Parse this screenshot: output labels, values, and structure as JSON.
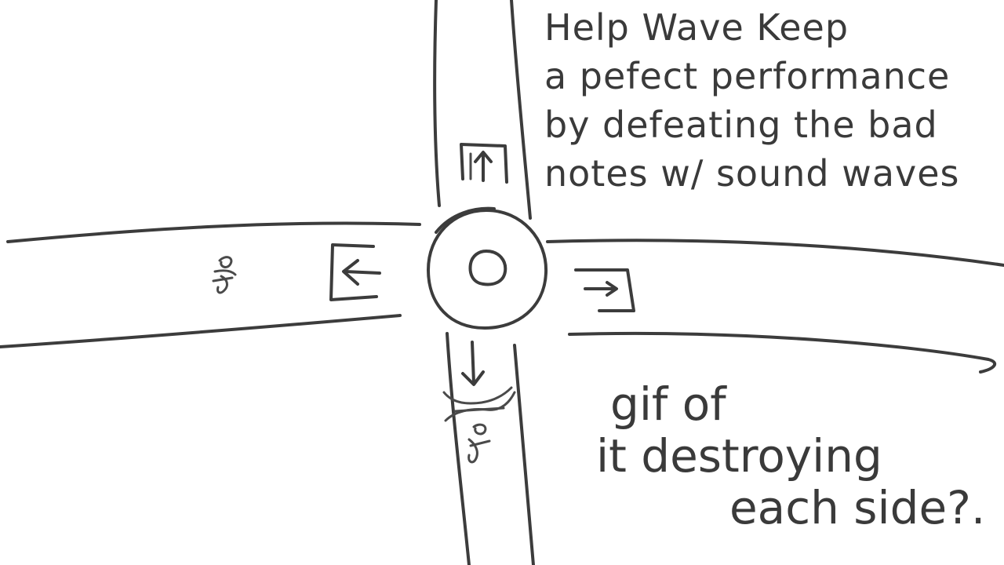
{
  "instructions": {
    "lines": [
      "Help Wave Keep",
      "a pefect performance",
      "by defeating the bad",
      "notes w/ sound waves"
    ]
  },
  "gif_note": {
    "lines": [
      "gif of",
      "it destroying",
      "each side?."
    ]
  },
  "player": {
    "icon": "sound-wave-core-icon"
  },
  "lanes": [
    {
      "direction": "up",
      "icon": "arrow-up-icon"
    },
    {
      "direction": "left",
      "icon": "arrow-left-icon"
    },
    {
      "direction": "right",
      "icon": "arrow-right-icon"
    },
    {
      "direction": "down",
      "icon": "arrow-down-icon"
    }
  ],
  "enemies": [
    {
      "lane": "left",
      "icon": "bad-note-icon"
    },
    {
      "lane": "down",
      "icon": "bad-note-icon"
    }
  ]
}
